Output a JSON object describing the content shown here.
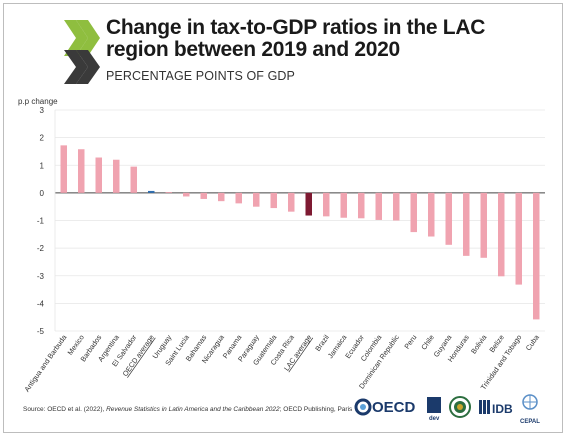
{
  "header": {
    "title": "Change in tax-to-GDP ratios in the LAC region between 2019 and 2020",
    "subtitle": "PERCENTAGE POINTS OF GDP"
  },
  "source": {
    "prefix": "Source: OECD et al. (2022), ",
    "publication": "Revenue Statistics in Latin America and the Caribbean 2022",
    "suffix": "; OECD Publishing, Paris"
  },
  "partners": {
    "oecd": "OECD",
    "dev": "dev",
    "idb": "IDB",
    "cepal": "CEPAL"
  },
  "colors": {
    "country_bar": "#f0a3b0",
    "oecd_average": "#2f6fb1",
    "lac_average": "#7e1a32",
    "grid": "#e6e6e6",
    "zero_line": "#444444",
    "logo_green": "#8fbe3f",
    "logo_dark": "#3a3a3a"
  },
  "chart_data": {
    "type": "bar",
    "ylabel": "p.p change",
    "ylim": [
      -5,
      3
    ],
    "yticks": [
      3,
      2,
      1,
      0,
      -1,
      -2,
      -3,
      -4,
      -5
    ],
    "grid": true,
    "categories": [
      "Antigua and Barbuda",
      "Mexico",
      "Barbados",
      "Argentina",
      "El Salvador",
      "OECD average",
      "Uruguay",
      "Saint Lucia",
      "Bahamas",
      "Nicaragua",
      "Panama",
      "Paraguay",
      "Guatemala",
      "Costa Rica",
      "LAC average",
      "Brazil",
      "Jamaica",
      "Ecuador",
      "Colombia",
      "Dominican Republic",
      "Peru",
      "Chile",
      "Guyana",
      "Honduras",
      "Bolivia",
      "Belize",
      "Trinidad and Tobago",
      "Cuba"
    ],
    "values": [
      1.72,
      1.58,
      1.28,
      1.2,
      0.95,
      0.07,
      0.03,
      -0.13,
      -0.22,
      -0.3,
      -0.38,
      -0.5,
      -0.55,
      -0.68,
      -0.82,
      -0.85,
      -0.9,
      -0.92,
      -0.98,
      -1.0,
      -1.42,
      -1.58,
      -1.88,
      -2.28,
      -2.35,
      -3.02,
      -3.32,
      -4.58
    ],
    "highlight": {
      "OECD average": "oecd_average",
      "LAC average": "lac_average"
    }
  }
}
